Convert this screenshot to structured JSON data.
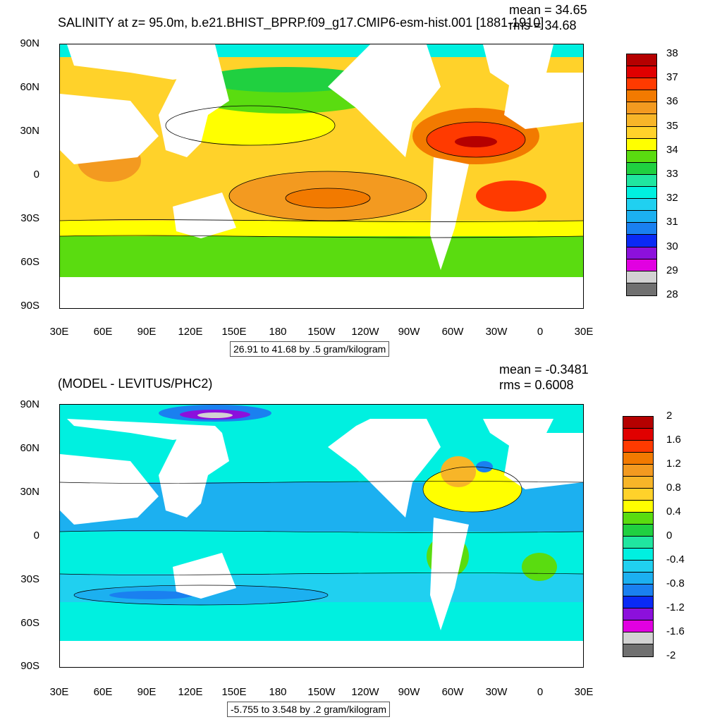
{
  "top_panel": {
    "title": "SALINITY at z=  95.0m, b.e21.BHIST_BPRP.f09_g17.CMIP6-esm-hist.001 [1881-1910]",
    "mean": "mean = 34.65",
    "rms": "rms = 34.68",
    "range": "26.91 to 41.68 by .5 gram/kilogram",
    "colorbar_labels": [
      "38",
      "37",
      "36",
      "35",
      "34",
      "33",
      "32",
      "31",
      "30",
      "29",
      "28"
    ],
    "colorbar_colors": [
      "#b50000",
      "#e00000",
      "#ff3a00",
      "#f27a00",
      "#f39a20",
      "#f7b528",
      "#ffd22a",
      "#ffff00",
      "#5adc10",
      "#20d040",
      "#20e6a0",
      "#00f0e0",
      "#20d0f0",
      "#1cb0f0",
      "#1a80f0",
      "#0a2af5",
      "#8c10dc",
      "#e100e1",
      "#d2d2d2",
      "#707070"
    ]
  },
  "bottom_panel": {
    "title": "(MODEL - LEVITUS/PHC2)",
    "mean": "mean = -0.3481",
    "rms": "rms = 0.6008",
    "range": "-5.755 to 3.548 by .2 gram/kilogram",
    "colorbar_labels": [
      "2",
      "1.6",
      "1.2",
      "0.8",
      "0.4",
      "0",
      "-0.4",
      "-0.8",
      "-1.2",
      "-1.6",
      "-2"
    ],
    "colorbar_colors": [
      "#b50000",
      "#e00000",
      "#ff3a00",
      "#f27a00",
      "#f39a20",
      "#f7b528",
      "#ffd22a",
      "#ffff00",
      "#5adc10",
      "#20d040",
      "#20e6a0",
      "#00f0e0",
      "#20d0f0",
      "#1cb0f0",
      "#1a80f0",
      "#0a2af5",
      "#8c10dc",
      "#e100e1",
      "#d2d2d2",
      "#707070"
    ]
  },
  "axes": {
    "lat_labels": [
      "90N",
      "60N",
      "30N",
      "0",
      "30S",
      "60S",
      "90S"
    ],
    "lon_labels": [
      "30E",
      "60E",
      "90E",
      "120E",
      "150E",
      "180",
      "150W",
      "120W",
      "90W",
      "60W",
      "30W",
      "0",
      "30E"
    ]
  }
}
